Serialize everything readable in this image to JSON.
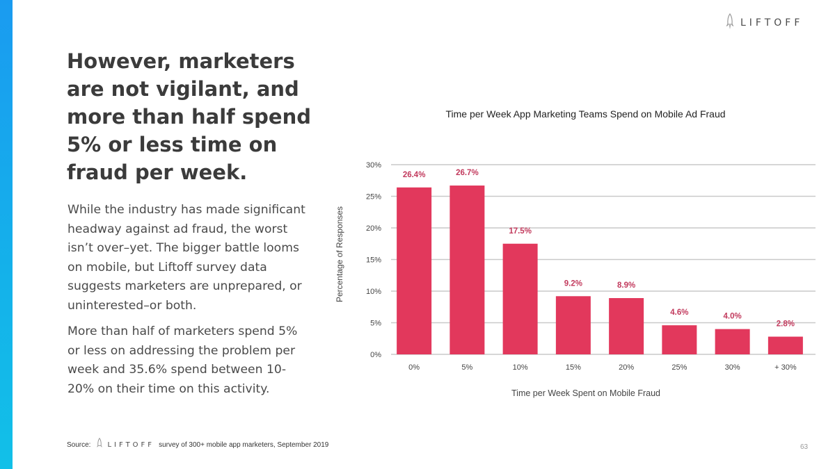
{
  "brand": {
    "name": "LIFTOFF",
    "logo_icon": "rocket-icon",
    "accent_gradient": [
      "#1a9bf0",
      "#12c0e8"
    ]
  },
  "headline": "However, marketers are not vigilant, and more than half spend 5% or less time on fraud per week.",
  "paragraphs": [
    "While the industry has made significant headway against ad fraud, the worst isn’t over–yet. The bigger battle looms on mobile, but Liftoff survey data suggests marketers are unprepared, or uninterested–or both.",
    "More than half of marketers spend 5% or less on addressing the problem per week and 35.6% spend between 10-20% on their time on this activity."
  ],
  "chart_data": {
    "type": "bar",
    "title": "Time per Week App Marketing Teams Spend on Mobile Ad Fraud",
    "xlabel": "Time per Week Spent on Mobile Fraud",
    "ylabel": "Percentage of Responses",
    "categories": [
      "0%",
      "5%",
      "10%",
      "15%",
      "20%",
      "25%",
      "30%",
      "+ 30%"
    ],
    "values": [
      26.4,
      26.7,
      17.5,
      9.2,
      8.9,
      4.6,
      4.0,
      2.8
    ],
    "value_labels": [
      "26.4%",
      "26.7%",
      "17.5%",
      "9.2%",
      "8.9%",
      "4.6%",
      "4.0%",
      "2.8%"
    ],
    "ylim": [
      0,
      30
    ],
    "yticks": [
      0,
      5,
      10,
      15,
      20,
      25,
      30
    ],
    "ytick_labels": [
      "0%",
      "5%",
      "10%",
      "15%",
      "20%",
      "25%",
      "30%"
    ],
    "bar_color": "#e2385c",
    "label_color": "#c23a5d",
    "grid": true
  },
  "footer": {
    "source_label": "Source:",
    "source_logo": "LIFTOFF",
    "source_text": "survey of 300+ mobile app marketers, September 2019",
    "page_number": "63"
  }
}
